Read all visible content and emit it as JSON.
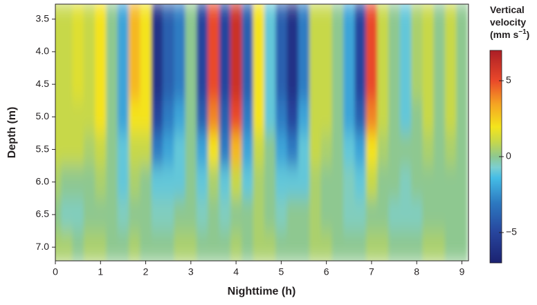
{
  "chart_data": {
    "type": "heatmap",
    "xlabel": "Nighttime (h)",
    "ylabel": "Depth (m)",
    "colorbar_title": [
      "Vertical",
      "velocity",
      "(mm s",
      "−1",
      ")"
    ],
    "x": [
      0,
      0.25,
      0.5,
      0.75,
      1,
      1.25,
      1.5,
      1.75,
      2,
      2.25,
      2.5,
      2.75,
      3,
      3.25,
      3.5,
      3.75,
      4,
      4.25,
      4.5,
      4.75,
      5,
      5.25,
      5.5,
      5.75,
      6,
      6.25,
      6.5,
      6.75,
      7,
      7.25,
      7.5,
      7.75,
      8,
      8.25,
      8.5,
      8.75,
      9
    ],
    "y": [
      3.5,
      4.0,
      4.5,
      5.0,
      5.5,
      6.0,
      6.5,
      7.0
    ],
    "z": [
      [
        1,
        1,
        1.5,
        1,
        2,
        0,
        -2,
        3,
        2,
        -6,
        -4,
        -3,
        0,
        -5,
        5,
        -5,
        6,
        -4,
        2,
        -1,
        -4,
        -6,
        -3,
        1,
        1,
        0,
        -2,
        -5,
        5,
        1,
        0,
        -1,
        0.5,
        1,
        0,
        1,
        0
      ],
      [
        1,
        1,
        1.5,
        1,
        2,
        0,
        -2,
        3,
        2,
        -6,
        -4,
        -3,
        0,
        -5,
        5,
        -5,
        6,
        -4,
        2,
        -1,
        -4,
        -6,
        -3,
        1,
        1,
        0,
        -2,
        -5,
        5,
        1,
        0,
        -1,
        0.5,
        1,
        0,
        1,
        0
      ],
      [
        1,
        1,
        1.5,
        1,
        2,
        0,
        -2,
        3,
        2,
        -6,
        -4,
        -3,
        0,
        -5,
        5,
        -5,
        6,
        -4,
        2,
        -1,
        -4,
        -6,
        -3,
        1,
        1,
        0,
        -2,
        -5,
        5,
        1,
        0,
        -1,
        0.5,
        1,
        0,
        1,
        0
      ],
      [
        1,
        1,
        1,
        1,
        2,
        0,
        -2,
        2,
        2,
        -5,
        -3,
        -2,
        0,
        -4,
        4,
        -4,
        5,
        -3,
        2,
        -1,
        -3,
        -5,
        -2,
        1,
        1,
        0,
        -2,
        -4,
        4,
        1,
        0,
        -1,
        0,
        1,
        0,
        1,
        0
      ],
      [
        1,
        1,
        1,
        0.5,
        1,
        0,
        -1,
        1,
        1,
        -3,
        -2,
        -1,
        0,
        -2,
        2,
        -3,
        3,
        -2,
        1,
        0,
        -2,
        -3,
        -1,
        1,
        0.5,
        0,
        -1,
        -2,
        2,
        0.5,
        0,
        0,
        0,
        0.5,
        0,
        0.5,
        0
      ],
      [
        0.5,
        0,
        0,
        0,
        0.5,
        0,
        -1,
        0.5,
        0,
        -1,
        -1,
        -1,
        0,
        -1,
        0.5,
        -1,
        1,
        -1,
        0.5,
        0,
        -1,
        -1,
        -1,
        0.5,
        0,
        0,
        -0.5,
        -1,
        1,
        0,
        0,
        -0.5,
        0,
        0,
        0,
        0,
        0
      ],
      [
        0,
        -0.5,
        -0.5,
        0,
        0,
        0,
        -0.5,
        0,
        0,
        -0.5,
        -0.5,
        0,
        0,
        -0.5,
        0,
        -0.5,
        0,
        0,
        0.5,
        0,
        -0.5,
        0,
        0,
        0.5,
        0,
        0,
        -0.5,
        -0.5,
        0,
        0,
        -0.5,
        -0.5,
        -0.5,
        0,
        0,
        0,
        0
      ],
      [
        0.5,
        0.5,
        0,
        0.5,
        0.5,
        0,
        0,
        0.5,
        0,
        0,
        0,
        0.5,
        0.5,
        0,
        0,
        0,
        0.5,
        0,
        0.5,
        0.5,
        0,
        0,
        0,
        0.5,
        0.5,
        0,
        0,
        0,
        0.5,
        0.5,
        0,
        0,
        0,
        0.5,
        0.5,
        0,
        0
      ]
    ],
    "xlim": [
      0,
      9.1
    ],
    "xticks": [
      0,
      1,
      2,
      3,
      4,
      5,
      6,
      7,
      8,
      9
    ],
    "ylim": [
      3.27,
      7.21
    ],
    "y_inverted": true,
    "yticks": [
      3.5,
      {
        "value": 4,
        "label": "4.0"
      },
      4.5,
      {
        "value": 5,
        "label": "5.0"
      },
      5.5,
      {
        "value": 6,
        "label": "6.0"
      },
      6.5,
      {
        "value": 7,
        "label": "7.0"
      }
    ],
    "clim": [
      -7,
      7
    ],
    "cticks": [
      5,
      0,
      {
        "value": -5,
        "label": "−5"
      }
    ]
  }
}
